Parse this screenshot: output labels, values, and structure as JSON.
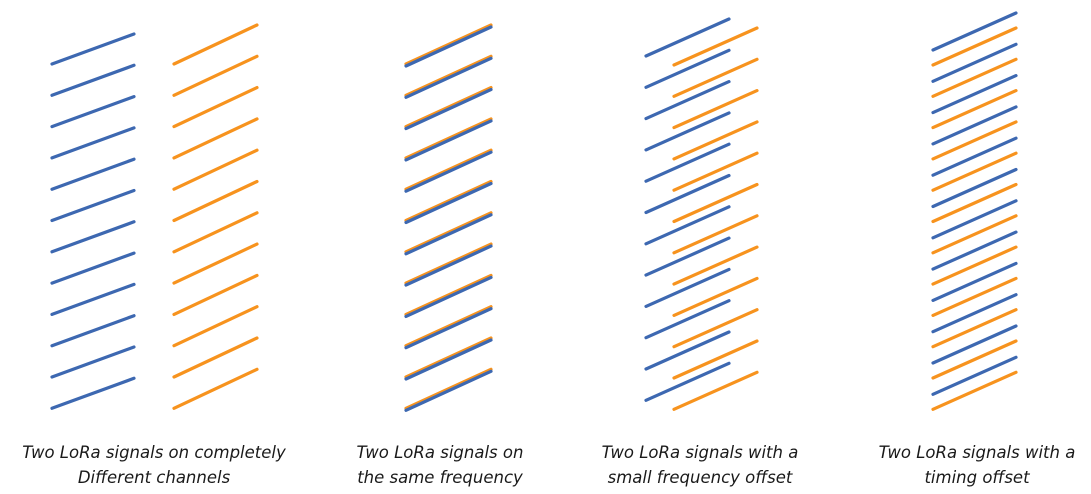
{
  "colors": {
    "signal_a": "#3d68b1",
    "signal_b": "#f7931e"
  },
  "panels": [
    {
      "id": "different-channels",
      "caption": [
        "Two LoRa signals on completely",
        "Different channels"
      ]
    },
    {
      "id": "same-frequency",
      "caption": [
        "Two LoRa signals on",
        "the same frequency"
      ]
    },
    {
      "id": "small-frequency-offset",
      "caption": [
        "Two LoRa signals with a",
        "small frequency offset"
      ]
    },
    {
      "id": "timing-offset",
      "caption": [
        "Two LoRa signals with a",
        "timing offset"
      ]
    }
  ]
}
